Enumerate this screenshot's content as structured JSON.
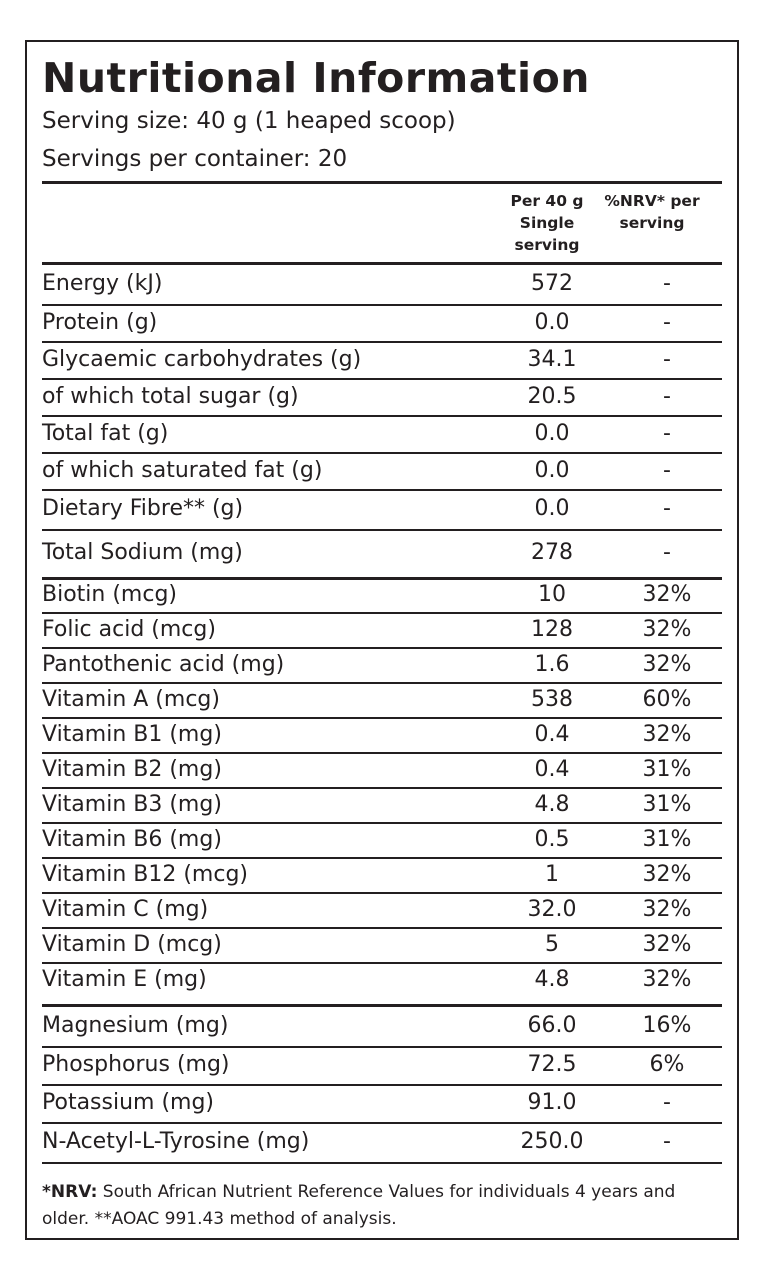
{
  "title": "Nutritional Information",
  "serving_size": "Serving size: 40 g (1 heaped scoop)",
  "servings_per_container": "Servings per container: 20",
  "header": {
    "per_serving": [
      "Per 40 g",
      "Single",
      "serving"
    ],
    "nrv": [
      "%NRV* per",
      "serving"
    ]
  },
  "groups": [
    [
      {
        "label": "Energy (kJ)",
        "value": "572",
        "nrv": "-"
      },
      {
        "label": "Protein (g)",
        "value": "0.0",
        "nrv": "-"
      },
      {
        "label": "Glycaemic carbohydrates (g)",
        "value": "34.1",
        "nrv": "-"
      },
      {
        "label": "of which total sugar (g)",
        "value": "20.5",
        "nrv": "-"
      },
      {
        "label": "Total fat (g)",
        "value": "0.0",
        "nrv": "-"
      },
      {
        "label": "of which saturated fat (g)",
        "value": "0.0",
        "nrv": "-"
      },
      {
        "label": "Dietary Fibre** (g)",
        "value": "0.0",
        "nrv": "-"
      },
      {
        "label": "Total Sodium (mg)",
        "value": "278",
        "nrv": "-"
      }
    ],
    [
      {
        "label": "Biotin (mcg)",
        "value": "10",
        "nrv": "32%"
      },
      {
        "label": "Folic acid (mcg)",
        "value": "128",
        "nrv": "32%"
      },
      {
        "label": "Pantothenic acid (mg)",
        "value": "1.6",
        "nrv": "32%"
      },
      {
        "label": "Vitamin A (mcg)",
        "value": "538",
        "nrv": "60%"
      },
      {
        "label": "Vitamin B1 (mg)",
        "value": "0.4",
        "nrv": "32%"
      },
      {
        "label": "Vitamin B2 (mg)",
        "value": "0.4",
        "nrv": "31%"
      },
      {
        "label": "Vitamin B3 (mg)",
        "value": "4.8",
        "nrv": "31%"
      },
      {
        "label": "Vitamin B6 (mg)",
        "value": "0.5",
        "nrv": "31%"
      },
      {
        "label": "Vitamin B12 (mcg)",
        "value": "1",
        "nrv": "32%"
      },
      {
        "label": "Vitamin C (mg)",
        "value": "32.0",
        "nrv": "32%"
      },
      {
        "label": "Vitamin D (mcg)",
        "value": "5",
        "nrv": "32%"
      },
      {
        "label": "Vitamin E (mg)",
        "value": "4.8",
        "nrv": "32%"
      }
    ],
    [
      {
        "label": "Magnesium (mg)",
        "value": "66.0",
        "nrv": "16%"
      },
      {
        "label": "Phosphorus (mg)",
        "value": "72.5",
        "nrv": "6%"
      },
      {
        "label": "Potassium (mg)",
        "value": "91.0",
        "nrv": "-"
      },
      {
        "label": "N-Acetyl-L-Tyrosine (mg)",
        "value": "250.0",
        "nrv": "-"
      }
    ]
  ],
  "footnote": {
    "bold": "*NRV:",
    "text": " South African Nutrient Reference Values for individuals 4 years and older. **AOAC 991.43 method of analysis."
  }
}
